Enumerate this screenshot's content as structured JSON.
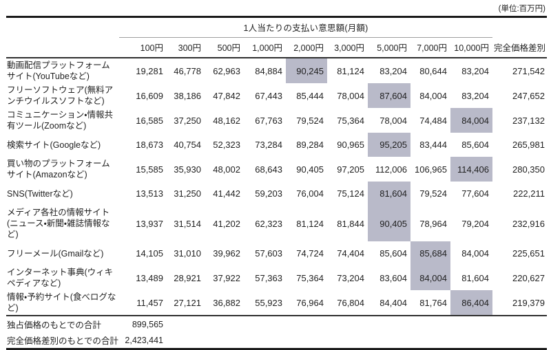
{
  "unit_note": "(単位:百万円)",
  "colors": {
    "highlight": "#b9bac9",
    "rule_heavy": "#1a1a1a",
    "rule_medium": "#2e2e2e",
    "rule_light": "#9e9e9e"
  },
  "table": {
    "group_header": "1人当たりの支払い意思額(月額)",
    "price_columns": [
      "100円",
      "300円",
      "500円",
      "1,000円",
      "2,000円",
      "3,000円",
      "5,000円",
      "7,000円",
      "10,000円"
    ],
    "last_column": "完全価格差別",
    "rows": [
      {
        "label": "動画配信プラットフォームサイト(YouTubeなど)",
        "values": [
          "19,281",
          "46,778",
          "62,963",
          "84,884",
          "90,245",
          "81,124",
          "83,204",
          "80,644",
          "83,204"
        ],
        "total": "271,542",
        "highlight": 4
      },
      {
        "label": "フリーソフトウェア(無料アンチウイルスソフトなど)",
        "values": [
          "16,609",
          "38,186",
          "47,842",
          "67,443",
          "85,444",
          "78,004",
          "87,604",
          "84,004",
          "83,204"
        ],
        "total": "247,652",
        "highlight": 6
      },
      {
        "label": "コミュニケーション・情報共有ツール(Zoomなど)",
        "values": [
          "16,585",
          "37,250",
          "48,162",
          "67,763",
          "79,524",
          "75,364",
          "78,004",
          "74,484",
          "84,004"
        ],
        "total": "237,132",
        "highlight": 8
      },
      {
        "label": "検索サイト(Googleなど)",
        "values": [
          "18,673",
          "40,754",
          "52,323",
          "73,284",
          "89,284",
          "90,965",
          "95,205",
          "83,444",
          "85,604"
        ],
        "total": "265,981",
        "highlight": 6
      },
      {
        "label": "買い物のプラットフォームサイト(Amazonなど)",
        "values": [
          "15,585",
          "35,930",
          "48,002",
          "68,643",
          "90,405",
          "97,205",
          "112,006",
          "106,965",
          "114,406"
        ],
        "total": "280,350",
        "highlight": 8
      },
      {
        "label": "SNS(Twitterなど)",
        "values": [
          "13,513",
          "31,250",
          "41,442",
          "59,203",
          "76,004",
          "75,124",
          "81,604",
          "79,524",
          "77,604"
        ],
        "total": "222,211",
        "highlight": 6
      },
      {
        "label": "メディア各社の情報サイト(ニュース・新聞・雑誌情報など)",
        "values": [
          "13,937",
          "31,514",
          "41,202",
          "62,323",
          "81,124",
          "81,844",
          "90,405",
          "78,964",
          "79,204"
        ],
        "total": "232,916",
        "highlight": 6
      },
      {
        "label": "フリーメール(Gmailなど)",
        "values": [
          "14,105",
          "31,010",
          "39,962",
          "57,603",
          "74,724",
          "74,404",
          "85,604",
          "85,684",
          "84,004"
        ],
        "total": "225,651",
        "highlight": 7
      },
      {
        "label": "インターネット事典(ウィキペディアなど)",
        "values": [
          "13,489",
          "28,921",
          "37,922",
          "57,363",
          "75,364",
          "73,204",
          "83,604",
          "84,004",
          "81,604"
        ],
        "total": "220,627",
        "highlight": 7
      },
      {
        "label": "情報・予約サイト(食べログなど)",
        "values": [
          "11,457",
          "27,121",
          "36,882",
          "55,923",
          "76,964",
          "76,804",
          "84,404",
          "81,764",
          "86,404"
        ],
        "total": "219,379",
        "highlight": 8
      }
    ],
    "footer": [
      {
        "label": "独占価格のもとでの合計",
        "value": "899,565"
      },
      {
        "label": "完全価格差別のもとでの合計",
        "value": "2,423,441"
      }
    ]
  },
  "chart_data": {
    "type": "table",
    "title": "1人当たりの支払い意思額(月額)",
    "unit": "百万円",
    "columns": [
      "100円",
      "300円",
      "500円",
      "1,000円",
      "2,000円",
      "3,000円",
      "5,000円",
      "7,000円",
      "10,000円",
      "完全価格差別"
    ],
    "rows": [
      {
        "service": "動画配信プラットフォームサイト(YouTubeなど)",
        "values": [
          19281,
          46778,
          62963,
          84884,
          90245,
          81124,
          83204,
          80644,
          83204,
          271542
        ],
        "highlighted_column": "2,000円"
      },
      {
        "service": "フリーソフトウェア(無料アンチウイルスソフトなど)",
        "values": [
          16609,
          38186,
          47842,
          67443,
          85444,
          78004,
          87604,
          84004,
          83204,
          247652
        ],
        "highlighted_column": "5,000円"
      },
      {
        "service": "コミュニケーション・情報共有ツール(Zoomなど)",
        "values": [
          16585,
          37250,
          48162,
          67763,
          79524,
          75364,
          78004,
          74484,
          84004,
          237132
        ],
        "highlighted_column": "10,000円"
      },
      {
        "service": "検索サイト(Googleなど)",
        "values": [
          18673,
          40754,
          52323,
          73284,
          89284,
          90965,
          95205,
          83444,
          85604,
          265981
        ],
        "highlighted_column": "5,000円"
      },
      {
        "service": "買い物のプラットフォームサイト(Amazonなど)",
        "values": [
          15585,
          35930,
          48002,
          68643,
          90405,
          97205,
          112006,
          106965,
          114406,
          280350
        ],
        "highlighted_column": "10,000円"
      },
      {
        "service": "SNS(Twitterなど)",
        "values": [
          13513,
          31250,
          41442,
          59203,
          76004,
          75124,
          81604,
          79524,
          77604,
          222211
        ],
        "highlighted_column": "5,000円"
      },
      {
        "service": "メディア各社の情報サイト(ニュース・新聞・雑誌情報など)",
        "values": [
          13937,
          31514,
          41202,
          62323,
          81124,
          81844,
          90405,
          78964,
          79204,
          232916
        ],
        "highlighted_column": "5,000円"
      },
      {
        "service": "フリーメール(Gmailなど)",
        "values": [
          14105,
          31010,
          39962,
          57603,
          74724,
          74404,
          85604,
          85684,
          84004,
          225651
        ],
        "highlighted_column": "7,000円"
      },
      {
        "service": "インターネット事典(ウィキペディアなど)",
        "values": [
          13489,
          28921,
          37922,
          57363,
          75364,
          73204,
          83604,
          84004,
          81604,
          220627
        ],
        "highlighted_column": "7,000円"
      },
      {
        "service": "情報・予約サイト(食べログなど)",
        "values": [
          11457,
          27121,
          36882,
          55923,
          76964,
          76804,
          84404,
          81764,
          86404,
          219379
        ],
        "highlighted_column": "10,000円"
      }
    ],
    "totals": [
      {
        "label": "独占価格のもとでの合計",
        "value": 899565
      },
      {
        "label": "完全価格差別のもとでの合計",
        "value": 2423441
      }
    ],
    "layout": {
      "highlight_fill": "#b9bac9",
      "grid": "off",
      "group_header_span": "100円–10,000円"
    }
  }
}
